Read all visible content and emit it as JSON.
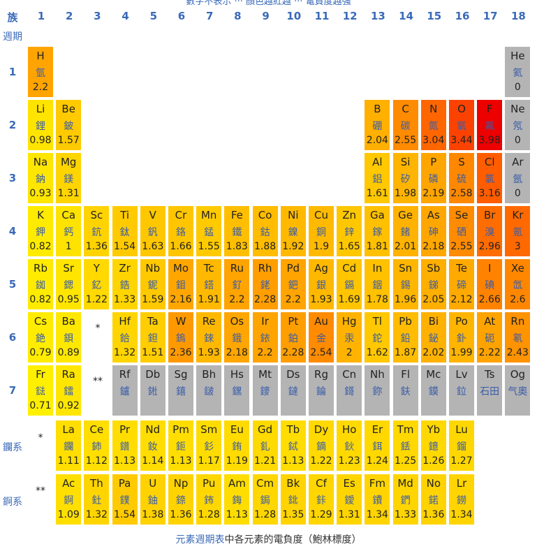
{
  "header": {
    "group_label": "族",
    "period_label": "週期",
    "groups": [
      "1",
      "2",
      "3",
      "4",
      "5",
      "6",
      "7",
      "8",
      "9",
      "10",
      "11",
      "12",
      "13",
      "14",
      "15",
      "16",
      "17",
      "18"
    ],
    "periods": [
      "1",
      "2",
      "3",
      "4",
      "5",
      "6",
      "7"
    ],
    "top_cut_text": "數字不表示 ··· 顏色越紅越 ··· 電負度越強"
  },
  "series_labels": {
    "lanthanides": "鑭系",
    "actinides": "錒系",
    "lanthanide_marker": "*",
    "actinide_marker": "**"
  },
  "caption": {
    "link": "元素週期表",
    "text": "中各元素的電負度（鮑林標度）"
  },
  "colors": {
    "grey": "#b4b4b4",
    "header_blue": "#3a6ab8"
  },
  "elements": [
    {
      "sym": "H",
      "cn": "氫",
      "en": "2.2",
      "g": 1,
      "p": 1
    },
    {
      "sym": "He",
      "cn": "氦",
      "en": "0",
      "g": 18,
      "p": 1
    },
    {
      "sym": "Li",
      "cn": "鋰",
      "en": "0.98",
      "g": 1,
      "p": 2
    },
    {
      "sym": "Be",
      "cn": "鈹",
      "en": "1.57",
      "g": 2,
      "p": 2
    },
    {
      "sym": "B",
      "cn": "硼",
      "en": "2.04",
      "g": 13,
      "p": 2
    },
    {
      "sym": "C",
      "cn": "碳",
      "en": "2.55",
      "g": 14,
      "p": 2
    },
    {
      "sym": "N",
      "cn": "氮",
      "en": "3.04",
      "g": 15,
      "p": 2
    },
    {
      "sym": "O",
      "cn": "氧",
      "en": "3.44",
      "g": 16,
      "p": 2
    },
    {
      "sym": "F",
      "cn": "氟",
      "en": "3.98",
      "g": 17,
      "p": 2
    },
    {
      "sym": "Ne",
      "cn": "氖",
      "en": "0",
      "g": 18,
      "p": 2
    },
    {
      "sym": "Na",
      "cn": "鈉",
      "en": "0.93",
      "g": 1,
      "p": 3
    },
    {
      "sym": "Mg",
      "cn": "鎂",
      "en": "1.31",
      "g": 2,
      "p": 3
    },
    {
      "sym": "Al",
      "cn": "鋁",
      "en": "1.61",
      "g": 13,
      "p": 3
    },
    {
      "sym": "Si",
      "cn": "矽",
      "en": "1.98",
      "g": 14,
      "p": 3
    },
    {
      "sym": "P",
      "cn": "磷",
      "en": "2.19",
      "g": 15,
      "p": 3
    },
    {
      "sym": "S",
      "cn": "硫",
      "en": "2.58",
      "g": 16,
      "p": 3
    },
    {
      "sym": "Cl",
      "cn": "氯",
      "en": "3.16",
      "g": 17,
      "p": 3
    },
    {
      "sym": "Ar",
      "cn": "氬",
      "en": "0",
      "g": 18,
      "p": 3
    },
    {
      "sym": "K",
      "cn": "鉀",
      "en": "0.82",
      "g": 1,
      "p": 4
    },
    {
      "sym": "Ca",
      "cn": "鈣",
      "en": "1",
      "g": 2,
      "p": 4
    },
    {
      "sym": "Sc",
      "cn": "鈧",
      "en": "1.36",
      "g": 3,
      "p": 4
    },
    {
      "sym": "Ti",
      "cn": "鈦",
      "en": "1.54",
      "g": 4,
      "p": 4
    },
    {
      "sym": "V",
      "cn": "釩",
      "en": "1.63",
      "g": 5,
      "p": 4
    },
    {
      "sym": "Cr",
      "cn": "鉻",
      "en": "1.66",
      "g": 6,
      "p": 4
    },
    {
      "sym": "Mn",
      "cn": "錳",
      "en": "1.55",
      "g": 7,
      "p": 4
    },
    {
      "sym": "Fe",
      "cn": "鐵",
      "en": "1.83",
      "g": 8,
      "p": 4
    },
    {
      "sym": "Co",
      "cn": "鈷",
      "en": "1.88",
      "g": 9,
      "p": 4
    },
    {
      "sym": "Ni",
      "cn": "鎳",
      "en": "1.92",
      "g": 10,
      "p": 4
    },
    {
      "sym": "Cu",
      "cn": "銅",
      "en": "1.9",
      "g": 11,
      "p": 4
    },
    {
      "sym": "Zn",
      "cn": "鋅",
      "en": "1.65",
      "g": 12,
      "p": 4
    },
    {
      "sym": "Ga",
      "cn": "鎵",
      "en": "1.81",
      "g": 13,
      "p": 4
    },
    {
      "sym": "Ge",
      "cn": "鍺",
      "en": "2.01",
      "g": 14,
      "p": 4
    },
    {
      "sym": "As",
      "cn": "砷",
      "en": "2.18",
      "g": 15,
      "p": 4
    },
    {
      "sym": "Se",
      "cn": "硒",
      "en": "2.55",
      "g": 16,
      "p": 4
    },
    {
      "sym": "Br",
      "cn": "溴",
      "en": "2.96",
      "g": 17,
      "p": 4
    },
    {
      "sym": "Kr",
      "cn": "氪",
      "en": "3",
      "g": 18,
      "p": 4
    },
    {
      "sym": "Rb",
      "cn": "銣",
      "en": "0.82",
      "g": 1,
      "p": 5
    },
    {
      "sym": "Sr",
      "cn": "鍶",
      "en": "0.95",
      "g": 2,
      "p": 5
    },
    {
      "sym": "Y",
      "cn": "釔",
      "en": "1.22",
      "g": 3,
      "p": 5
    },
    {
      "sym": "Zr",
      "cn": "鋯",
      "en": "1.33",
      "g": 4,
      "p": 5
    },
    {
      "sym": "Nb",
      "cn": "鈮",
      "en": "1.59",
      "g": 5,
      "p": 5
    },
    {
      "sym": "Mo",
      "cn": "鉬",
      "en": "2.16",
      "g": 6,
      "p": 5
    },
    {
      "sym": "Tc",
      "cn": "鎝",
      "en": "1.91",
      "g": 7,
      "p": 5
    },
    {
      "sym": "Ru",
      "cn": "釕",
      "en": "2.2",
      "g": 8,
      "p": 5
    },
    {
      "sym": "Rh",
      "cn": "銠",
      "en": "2.28",
      "g": 9,
      "p": 5
    },
    {
      "sym": "Pd",
      "cn": "鈀",
      "en": "2.2",
      "g": 10,
      "p": 5
    },
    {
      "sym": "Ag",
      "cn": "銀",
      "en": "1.93",
      "g": 11,
      "p": 5
    },
    {
      "sym": "Cd",
      "cn": "鎘",
      "en": "1.69",
      "g": 12,
      "p": 5
    },
    {
      "sym": "In",
      "cn": "銦",
      "en": "1.78",
      "g": 13,
      "p": 5
    },
    {
      "sym": "Sn",
      "cn": "錫",
      "en": "1.96",
      "g": 14,
      "p": 5
    },
    {
      "sym": "Sb",
      "cn": "銻",
      "en": "2.05",
      "g": 15,
      "p": 5
    },
    {
      "sym": "Te",
      "cn": "碲",
      "en": "2.12",
      "g": 16,
      "p": 5
    },
    {
      "sym": "I",
      "cn": "碘",
      "en": "2.66",
      "g": 17,
      "p": 5
    },
    {
      "sym": "Xe",
      "cn": "氙",
      "en": "2.6",
      "g": 18,
      "p": 5
    },
    {
      "sym": "Cs",
      "cn": "銫",
      "en": "0.79",
      "g": 1,
      "p": 6
    },
    {
      "sym": "Ba",
      "cn": "鋇",
      "en": "0.89",
      "g": 2,
      "p": 6
    },
    {
      "sym": "Hf",
      "cn": "鉿",
      "en": "1.32",
      "g": 4,
      "p": 6
    },
    {
      "sym": "Ta",
      "cn": "鉭",
      "en": "1.51",
      "g": 5,
      "p": 6
    },
    {
      "sym": "W",
      "cn": "鎢",
      "en": "2.36",
      "g": 6,
      "p": 6
    },
    {
      "sym": "Re",
      "cn": "錸",
      "en": "1.93",
      "g": 7,
      "p": 6
    },
    {
      "sym": "Os",
      "cn": "鋨",
      "en": "2.18",
      "g": 8,
      "p": 6
    },
    {
      "sym": "Ir",
      "cn": "銥",
      "en": "2.2",
      "g": 9,
      "p": 6
    },
    {
      "sym": "Pt",
      "cn": "鉑",
      "en": "2.28",
      "g": 10,
      "p": 6
    },
    {
      "sym": "Au",
      "cn": "金",
      "en": "2.54",
      "g": 11,
      "p": 6
    },
    {
      "sym": "Hg",
      "cn": "汞",
      "en": "2",
      "g": 12,
      "p": 6
    },
    {
      "sym": "Tl",
      "cn": "鉈",
      "en": "1.62",
      "g": 13,
      "p": 6
    },
    {
      "sym": "Pb",
      "cn": "鉛",
      "en": "1.87",
      "g": 14,
      "p": 6
    },
    {
      "sym": "Bi",
      "cn": "鉍",
      "en": "2.02",
      "g": 15,
      "p": 6
    },
    {
      "sym": "Po",
      "cn": "釙",
      "en": "1.99",
      "g": 16,
      "p": 6
    },
    {
      "sym": "At",
      "cn": "砈",
      "en": "2.22",
      "g": 17,
      "p": 6
    },
    {
      "sym": "Rn",
      "cn": "氡",
      "en": "2.43",
      "g": 18,
      "p": 6
    },
    {
      "sym": "Fr",
      "cn": "鍅",
      "en": "0.71",
      "g": 1,
      "p": 7
    },
    {
      "sym": "Ra",
      "cn": "鐳",
      "en": "0.92",
      "g": 2,
      "p": 7
    },
    {
      "sym": "Rf",
      "cn": "鑪",
      "en": "",
      "g": 4,
      "p": 7
    },
    {
      "sym": "Db",
      "cn": "𨧀",
      "en": "",
      "g": 5,
      "p": 7
    },
    {
      "sym": "Sg",
      "cn": "𨭎",
      "en": "",
      "g": 6,
      "p": 7
    },
    {
      "sym": "Bh",
      "cn": "𨨏",
      "en": "",
      "g": 7,
      "p": 7
    },
    {
      "sym": "Hs",
      "cn": "𨭆",
      "en": "",
      "g": 8,
      "p": 7
    },
    {
      "sym": "Mt",
      "cn": "䥑",
      "en": "",
      "g": 9,
      "p": 7
    },
    {
      "sym": "Ds",
      "cn": "鐽",
      "en": "",
      "g": 10,
      "p": 7
    },
    {
      "sym": "Rg",
      "cn": "錀",
      "en": "",
      "g": 11,
      "p": 7
    },
    {
      "sym": "Cn",
      "cn": "鎶",
      "en": "",
      "g": 12,
      "p": 7
    },
    {
      "sym": "Nh",
      "cn": "鉨",
      "en": "",
      "g": 13,
      "p": 7
    },
    {
      "sym": "Fl",
      "cn": "鈇",
      "en": "",
      "g": 14,
      "p": 7
    },
    {
      "sym": "Mc",
      "cn": "鏌",
      "en": "",
      "g": 15,
      "p": 7
    },
    {
      "sym": "Lv",
      "cn": "鉝",
      "en": "",
      "g": 16,
      "p": 7
    },
    {
      "sym": "Ts",
      "cn": "石田",
      "en": "",
      "g": 17,
      "p": 7
    },
    {
      "sym": "Og",
      "cn": "气奧",
      "en": "",
      "g": 18,
      "p": 7
    },
    {
      "sym": "La",
      "cn": "鑭",
      "en": "1.11",
      "g": 2,
      "p": "La"
    },
    {
      "sym": "Ce",
      "cn": "鈰",
      "en": "1.12",
      "g": 3,
      "p": "La"
    },
    {
      "sym": "Pr",
      "cn": "鐠",
      "en": "1.13",
      "g": 4,
      "p": "La"
    },
    {
      "sym": "Nd",
      "cn": "釹",
      "en": "1.14",
      "g": 5,
      "p": "La"
    },
    {
      "sym": "Pm",
      "cn": "鉕",
      "en": "1.13",
      "g": 6,
      "p": "La"
    },
    {
      "sym": "Sm",
      "cn": "釤",
      "en": "1.17",
      "g": 7,
      "p": "La"
    },
    {
      "sym": "Eu",
      "cn": "銪",
      "en": "1.19",
      "g": 8,
      "p": "La"
    },
    {
      "sym": "Gd",
      "cn": "釓",
      "en": "1.21",
      "g": 9,
      "p": "La"
    },
    {
      "sym": "Tb",
      "cn": "鋱",
      "en": "1.13",
      "g": 10,
      "p": "La"
    },
    {
      "sym": "Dy",
      "cn": "鏑",
      "en": "1.22",
      "g": 11,
      "p": "La"
    },
    {
      "sym": "Ho",
      "cn": "鈥",
      "en": "1.23",
      "g": 12,
      "p": "La"
    },
    {
      "sym": "Er",
      "cn": "鉺",
      "en": "1.24",
      "g": 13,
      "p": "La"
    },
    {
      "sym": "Tm",
      "cn": "銩",
      "en": "1.25",
      "g": 14,
      "p": "La"
    },
    {
      "sym": "Yb",
      "cn": "鐿",
      "en": "1.26",
      "g": 15,
      "p": "La"
    },
    {
      "sym": "Lu",
      "cn": "鎦",
      "en": "1.27",
      "g": 16,
      "p": "La"
    },
    {
      "sym": "Ac",
      "cn": "錒",
      "en": "1.09",
      "g": 2,
      "p": "Ac"
    },
    {
      "sym": "Th",
      "cn": "釷",
      "en": "1.32",
      "g": 3,
      "p": "Ac"
    },
    {
      "sym": "Pa",
      "cn": "鏷",
      "en": "1.54",
      "g": 4,
      "p": "Ac"
    },
    {
      "sym": "U",
      "cn": "鈾",
      "en": "1.38",
      "g": 5,
      "p": "Ac"
    },
    {
      "sym": "Np",
      "cn": "錼",
      "en": "1.36",
      "g": 6,
      "p": "Ac"
    },
    {
      "sym": "Pu",
      "cn": "鈽",
      "en": "1.28",
      "g": 7,
      "p": "Ac"
    },
    {
      "sym": "Am",
      "cn": "鋂",
      "en": "1.13",
      "g": 8,
      "p": "Ac"
    },
    {
      "sym": "Cm",
      "cn": "鋦",
      "en": "1.28",
      "g": 9,
      "p": "Ac"
    },
    {
      "sym": "Bk",
      "cn": "鉳",
      "en": "1.35",
      "g": 10,
      "p": "Ac"
    },
    {
      "sym": "Cf",
      "cn": "鉲",
      "en": "1.29",
      "g": 11,
      "p": "Ac"
    },
    {
      "sym": "Es",
      "cn": "鑀",
      "en": "1.31",
      "g": 12,
      "p": "Ac"
    },
    {
      "sym": "Fm",
      "cn": "鐨",
      "en": "1.34",
      "g": 13,
      "p": "Ac"
    },
    {
      "sym": "Md",
      "cn": "鍆",
      "en": "1.33",
      "g": 14,
      "p": "Ac"
    },
    {
      "sym": "No",
      "cn": "鍩",
      "en": "1.36",
      "g": 15,
      "p": "Ac"
    },
    {
      "sym": "Lr",
      "cn": "鐒",
      "en": "1.34",
      "g": 16,
      "p": "Ac"
    }
  ]
}
